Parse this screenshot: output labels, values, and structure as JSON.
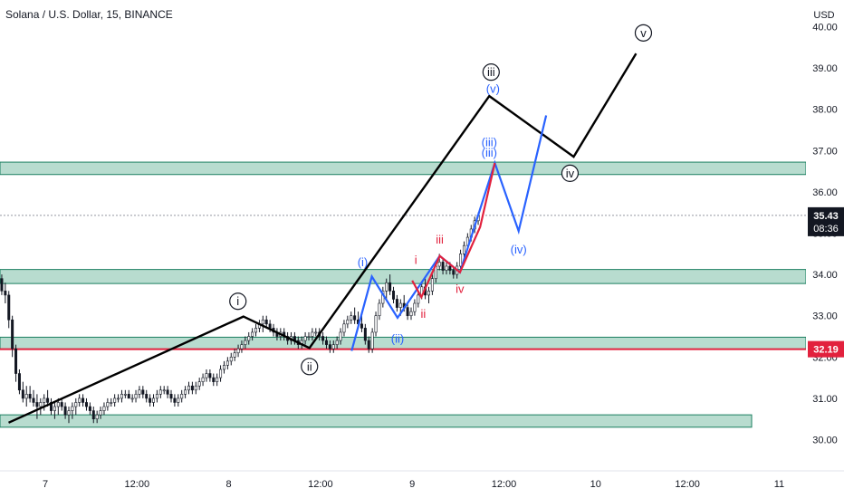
{
  "header": {
    "title": "Solana / U.S. Dollar, 15, BINANCE"
  },
  "chart_data": {
    "type": "candlestick",
    "symbol": "Solana / U.S. Dollar",
    "interval": "15",
    "exchange": "BINANCE",
    "currency_label": "USD",
    "y_ticks": [
      "30.00",
      "31.00",
      "32.00",
      "33.00",
      "34.00",
      "35.00",
      "36.00",
      "37.00",
      "38.00",
      "39.00",
      "40.00"
    ],
    "x_ticks": [
      {
        "label": "7",
        "x": 0
      },
      {
        "label": "12:00",
        "x": 0.5
      },
      {
        "label": "8",
        "x": 1
      },
      {
        "label": "12:00",
        "x": 1.5
      },
      {
        "label": "9",
        "x": 2
      },
      {
        "label": "12:00",
        "x": 2.5
      },
      {
        "label": "10",
        "x": 3
      },
      {
        "label": "12:00",
        "x": 3.5
      },
      {
        "label": "11",
        "x": 4
      }
    ],
    "price_badges": [
      {
        "value": "35.43",
        "sub": "08:36",
        "color": "#131722"
      },
      {
        "value": "32.19",
        "sub": "",
        "color": "#e2213d"
      }
    ],
    "current_price": 35.43,
    "red_line_price": 32.19,
    "zones": [
      {
        "low": 36.42,
        "high": 36.72,
        "x_start": -0.5,
        "x_end": 4.5
      },
      {
        "low": 33.78,
        "high": 34.12,
        "x_start": -0.5,
        "x_end": 4.5
      },
      {
        "low": 32.19,
        "high": 32.48,
        "x_start": -0.5,
        "x_end": 4.5
      },
      {
        "low": 30.3,
        "high": 30.6,
        "x_start": -0.5,
        "x_end": 3.85
      }
    ],
    "waves": {
      "black": [
        [
          -0.2,
          30.41
        ],
        [
          1.08,
          32.98
        ],
        [
          1.44,
          32.22
        ],
        [
          2.42,
          38.32
        ],
        [
          2.88,
          36.85
        ],
        [
          3.22,
          39.35
        ]
      ],
      "blue": [
        [
          1.67,
          32.15
        ],
        [
          1.78,
          33.95
        ],
        [
          1.92,
          32.95
        ],
        [
          2.15,
          34.45
        ],
        [
          2.26,
          34.05
        ],
        [
          2.45,
          36.7
        ],
        [
          2.58,
          35.05
        ],
        [
          2.73,
          37.85
        ]
      ],
      "red": [
        [
          2.0,
          33.85
        ],
        [
          2.05,
          33.45
        ],
        [
          2.15,
          34.45
        ],
        [
          2.26,
          34.05
        ],
        [
          2.37,
          35.15
        ],
        [
          2.45,
          36.7
        ]
      ]
    },
    "labels": [
      {
        "text": "i",
        "color": "#131722",
        "circle": true,
        "x": 1.05,
        "y": 33.35
      },
      {
        "text": "ii",
        "color": "#131722",
        "circle": true,
        "x": 1.44,
        "y": 31.77
      },
      {
        "text": "iii",
        "color": "#131722",
        "circle": true,
        "x": 2.43,
        "y": 38.9
      },
      {
        "text": "iv",
        "color": "#131722",
        "circle": true,
        "x": 2.86,
        "y": 36.45
      },
      {
        "text": "v",
        "color": "#131722",
        "circle": true,
        "x": 3.26,
        "y": 39.85
      },
      {
        "text": "(i)",
        "color": "#2962ff",
        "circle": false,
        "x": 1.73,
        "y": 34.3
      },
      {
        "text": "(ii)",
        "color": "#2962ff",
        "circle": false,
        "x": 1.92,
        "y": 32.45
      },
      {
        "text": "(iii)",
        "color": "#2962ff",
        "circle": false,
        "x": 2.42,
        "y": 36.95
      },
      {
        "text": "(iii)",
        "color": "#2962ff",
        "circle": false,
        "x": 2.42,
        "y": 37.2
      },
      {
        "text": "(iv)",
        "color": "#2962ff",
        "circle": false,
        "x": 2.58,
        "y": 34.6
      },
      {
        "text": "(v)",
        "color": "#2962ff",
        "circle": false,
        "x": 2.44,
        "y": 38.5
      },
      {
        "text": "i",
        "color": "#e2213d",
        "circle": false,
        "x": 2.02,
        "y": 34.35
      },
      {
        "text": "ii",
        "color": "#e2213d",
        "circle": false,
        "x": 2.06,
        "y": 33.05
      },
      {
        "text": "iii",
        "color": "#e2213d",
        "circle": false,
        "x": 2.15,
        "y": 34.85
      },
      {
        "text": "iv",
        "color": "#e2213d",
        "circle": false,
        "x": 2.26,
        "y": 33.65
      }
    ],
    "colors": {
      "zone_fill": "#b8dccf",
      "zone_stroke": "#1b7f60",
      "black_wave": "#000000",
      "blue_wave": "#2962ff",
      "red_wave": "#e2213d",
      "candle": "#131722"
    },
    "candles_ohlc": [
      [
        33.9,
        34.0,
        33.5,
        33.6
      ],
      [
        33.6,
        33.8,
        33.3,
        33.5
      ],
      [
        33.5,
        33.6,
        32.7,
        32.9
      ],
      [
        32.9,
        33.0,
        32.0,
        32.2
      ],
      [
        32.2,
        32.3,
        31.4,
        31.6
      ],
      [
        31.6,
        31.7,
        31.1,
        31.2
      ],
      [
        31.2,
        31.4,
        30.9,
        31.0
      ],
      [
        31.0,
        31.3,
        30.8,
        31.1
      ],
      [
        31.1,
        31.3,
        30.9,
        31.0
      ],
      [
        31.0,
        31.2,
        30.8,
        30.9
      ],
      [
        30.9,
        31.1,
        30.5,
        30.8
      ],
      [
        30.8,
        31.0,
        30.6,
        30.9
      ],
      [
        30.9,
        31.1,
        30.7,
        31.0
      ],
      [
        31.0,
        31.2,
        30.8,
        30.9
      ],
      [
        30.9,
        31.0,
        30.6,
        30.7
      ],
      [
        30.7,
        30.9,
        30.5,
        30.8
      ],
      [
        30.8,
        31.0,
        30.6,
        30.9
      ],
      [
        30.9,
        31.0,
        30.7,
        30.8
      ],
      [
        30.8,
        30.9,
        30.5,
        30.6
      ],
      [
        30.6,
        30.8,
        30.4,
        30.7
      ],
      [
        30.7,
        30.9,
        30.5,
        30.8
      ],
      [
        30.8,
        31.0,
        30.6,
        30.9
      ],
      [
        30.9,
        31.1,
        30.8,
        31.0
      ],
      [
        31.0,
        31.1,
        30.8,
        30.9
      ],
      [
        30.9,
        31.0,
        30.7,
        30.8
      ],
      [
        30.8,
        30.9,
        30.6,
        30.7
      ],
      [
        30.7,
        30.8,
        30.4,
        30.5
      ],
      [
        30.5,
        30.7,
        30.4,
        30.6
      ],
      [
        30.6,
        30.8,
        30.5,
        30.7
      ],
      [
        30.7,
        30.9,
        30.6,
        30.8
      ],
      [
        30.8,
        31.0,
        30.7,
        30.9
      ],
      [
        30.9,
        31.0,
        30.8,
        30.9
      ],
      [
        30.9,
        31.1,
        30.8,
        31.0
      ],
      [
        31.0,
        31.1,
        30.9,
        31.0
      ],
      [
        31.0,
        31.2,
        30.9,
        31.1
      ],
      [
        31.1,
        31.2,
        31.0,
        31.1
      ],
      [
        31.1,
        31.2,
        31.0,
        31.0
      ],
      [
        31.0,
        31.1,
        30.9,
        31.0
      ],
      [
        31.0,
        31.2,
        30.9,
        31.1
      ],
      [
        31.1,
        31.3,
        31.0,
        31.2
      ],
      [
        31.2,
        31.3,
        31.0,
        31.1
      ],
      [
        31.1,
        31.2,
        30.9,
        31.0
      ],
      [
        31.0,
        31.1,
        30.8,
        30.9
      ],
      [
        30.9,
        31.1,
        30.8,
        31.0
      ],
      [
        31.0,
        31.2,
        30.9,
        31.1
      ],
      [
        31.1,
        31.3,
        31.0,
        31.2
      ],
      [
        31.2,
        31.3,
        31.1,
        31.2
      ],
      [
        31.2,
        31.3,
        31.0,
        31.1
      ],
      [
        31.1,
        31.2,
        30.9,
        31.0
      ],
      [
        31.0,
        31.1,
        30.8,
        30.9
      ],
      [
        30.9,
        31.1,
        30.8,
        31.0
      ],
      [
        31.0,
        31.2,
        30.9,
        31.1
      ],
      [
        31.1,
        31.3,
        31.0,
        31.2
      ],
      [
        31.2,
        31.4,
        31.1,
        31.3
      ],
      [
        31.3,
        31.4,
        31.1,
        31.2
      ],
      [
        31.2,
        31.4,
        31.1,
        31.3
      ],
      [
        31.3,
        31.5,
        31.2,
        31.4
      ],
      [
        31.4,
        31.6,
        31.3,
        31.5
      ],
      [
        31.5,
        31.7,
        31.4,
        31.6
      ],
      [
        31.6,
        31.7,
        31.4,
        31.5
      ],
      [
        31.5,
        31.6,
        31.3,
        31.4
      ],
      [
        31.4,
        31.6,
        31.3,
        31.5
      ],
      [
        31.5,
        31.8,
        31.4,
        31.7
      ],
      [
        31.7,
        31.9,
        31.6,
        31.8
      ],
      [
        31.8,
        32.0,
        31.7,
        31.9
      ],
      [
        31.9,
        32.1,
        31.8,
        32.0
      ],
      [
        32.0,
        32.2,
        31.9,
        32.1
      ],
      [
        32.1,
        32.3,
        32.0,
        32.2
      ],
      [
        32.2,
        32.4,
        32.1,
        32.3
      ],
      [
        32.3,
        32.5,
        32.2,
        32.4
      ],
      [
        32.4,
        32.6,
        32.3,
        32.5
      ],
      [
        32.5,
        32.7,
        32.4,
        32.6
      ],
      [
        32.6,
        32.8,
        32.5,
        32.7
      ],
      [
        32.7,
        32.9,
        32.6,
        32.8
      ],
      [
        32.8,
        33.0,
        32.6,
        32.9
      ],
      [
        32.9,
        33.0,
        32.7,
        32.8
      ],
      [
        32.8,
        32.9,
        32.6,
        32.7
      ],
      [
        32.7,
        32.8,
        32.5,
        32.6
      ],
      [
        32.6,
        32.7,
        32.4,
        32.5
      ],
      [
        32.5,
        32.7,
        32.4,
        32.6
      ],
      [
        32.6,
        32.7,
        32.4,
        32.5
      ],
      [
        32.5,
        32.6,
        32.3,
        32.4
      ],
      [
        32.4,
        32.6,
        32.3,
        32.5
      ],
      [
        32.5,
        32.6,
        32.3,
        32.4
      ],
      [
        32.4,
        32.5,
        32.2,
        32.3
      ],
      [
        32.3,
        32.5,
        32.2,
        32.4
      ],
      [
        32.4,
        32.6,
        32.3,
        32.5
      ],
      [
        32.5,
        32.6,
        32.4,
        32.5
      ],
      [
        32.5,
        32.7,
        32.4,
        32.6
      ],
      [
        32.6,
        32.7,
        32.5,
        32.6
      ],
      [
        32.6,
        32.7,
        32.4,
        32.5
      ],
      [
        32.5,
        32.6,
        32.3,
        32.4
      ],
      [
        32.4,
        32.5,
        32.2,
        32.3
      ],
      [
        32.3,
        32.4,
        32.1,
        32.2
      ],
      [
        32.2,
        32.4,
        32.1,
        32.3
      ],
      [
        32.3,
        32.5,
        32.2,
        32.4
      ],
      [
        32.4,
        32.7,
        32.3,
        32.6
      ],
      [
        32.6,
        32.9,
        32.5,
        32.8
      ],
      [
        32.8,
        33.0,
        32.7,
        32.9
      ],
      [
        32.9,
        33.1,
        32.8,
        33.0
      ],
      [
        33.0,
        33.2,
        32.8,
        32.9
      ],
      [
        32.9,
        33.1,
        32.7,
        32.8
      ],
      [
        32.8,
        33.0,
        32.6,
        32.7
      ],
      [
        32.7,
        32.8,
        32.3,
        32.4
      ],
      [
        32.4,
        32.5,
        32.1,
        32.2
      ],
      [
        32.2,
        32.7,
        32.1,
        32.6
      ],
      [
        32.6,
        33.1,
        32.5,
        33.0
      ],
      [
        33.0,
        33.4,
        32.9,
        33.3
      ],
      [
        33.3,
        33.7,
        33.2,
        33.6
      ],
      [
        33.6,
        33.9,
        33.4,
        33.8
      ],
      [
        33.8,
        34.0,
        33.5,
        33.6
      ],
      [
        33.6,
        33.7,
        33.3,
        33.4
      ],
      [
        33.4,
        33.5,
        33.1,
        33.2
      ],
      [
        33.2,
        33.4,
        33.0,
        33.3
      ],
      [
        33.3,
        33.5,
        33.1,
        33.2
      ],
      [
        33.2,
        33.3,
        32.9,
        33.0
      ],
      [
        33.0,
        33.2,
        32.9,
        33.1
      ],
      [
        33.1,
        33.4,
        33.0,
        33.3
      ],
      [
        33.3,
        33.6,
        33.2,
        33.5
      ],
      [
        33.5,
        33.8,
        33.4,
        33.7
      ],
      [
        33.7,
        33.9,
        33.4,
        33.5
      ],
      [
        33.5,
        33.7,
        33.3,
        33.6
      ],
      [
        33.6,
        34.0,
        33.5,
        33.9
      ],
      [
        33.9,
        34.3,
        33.8,
        34.2
      ],
      [
        34.2,
        34.5,
        34.1,
        34.3
      ],
      [
        34.3,
        34.4,
        34.0,
        34.1
      ],
      [
        34.1,
        34.3,
        34.0,
        34.2
      ],
      [
        34.2,
        34.3,
        34.0,
        34.1
      ],
      [
        34.1,
        34.2,
        33.9,
        34.0
      ],
      [
        34.0,
        34.3,
        33.9,
        34.2
      ],
      [
        34.2,
        34.6,
        34.1,
        34.5
      ],
      [
        34.5,
        34.8,
        34.4,
        34.7
      ],
      [
        34.7,
        35.0,
        34.6,
        34.9
      ],
      [
        34.9,
        35.2,
        34.8,
        35.1
      ],
      [
        35.1,
        35.4,
        35.0,
        35.3
      ],
      [
        35.3,
        35.5,
        35.2,
        35.43
      ]
    ]
  }
}
